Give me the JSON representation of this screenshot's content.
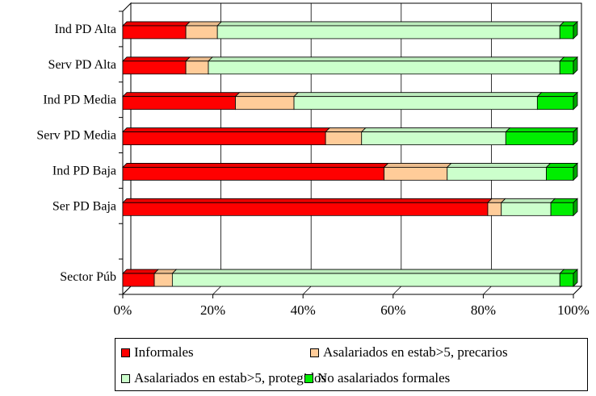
{
  "chart_data": {
    "type": "bar",
    "orientation": "horizontal",
    "stacked": "percent",
    "style": "3d",
    "categories": [
      "Ind PD Alta",
      "Serv PD Alta",
      "Ind PD Media",
      "Serv PD Media",
      "Ind PD Baja",
      "Ser PD Baja",
      "",
      "Sector Púb"
    ],
    "series": [
      {
        "name": "Informales",
        "color": "#ff0000",
        "values": [
          14,
          14,
          25,
          45,
          58,
          81,
          null,
          7
        ]
      },
      {
        "name": "Asalariados en estab>5, precarios",
        "color": "#ffcc99",
        "values": [
          7,
          5,
          13,
          8,
          14,
          3,
          null,
          4
        ]
      },
      {
        "name": "Asalariados en estab>5, protegidos",
        "color": "#ccffcc",
        "values": [
          76,
          78,
          54,
          32,
          22,
          11,
          null,
          86
        ]
      },
      {
        "name": "No asalariados formales",
        "color": "#00ee00",
        "values": [
          3,
          3,
          8,
          15,
          6,
          5,
          null,
          3
        ]
      }
    ],
    "x_ticks": [
      "0%",
      "20%",
      "40%",
      "60%",
      "80%",
      "100%"
    ],
    "xlim": [
      0,
      100
    ],
    "grid": true,
    "legend_position": "bottom",
    "title": "",
    "xlabel": "",
    "ylabel": ""
  }
}
